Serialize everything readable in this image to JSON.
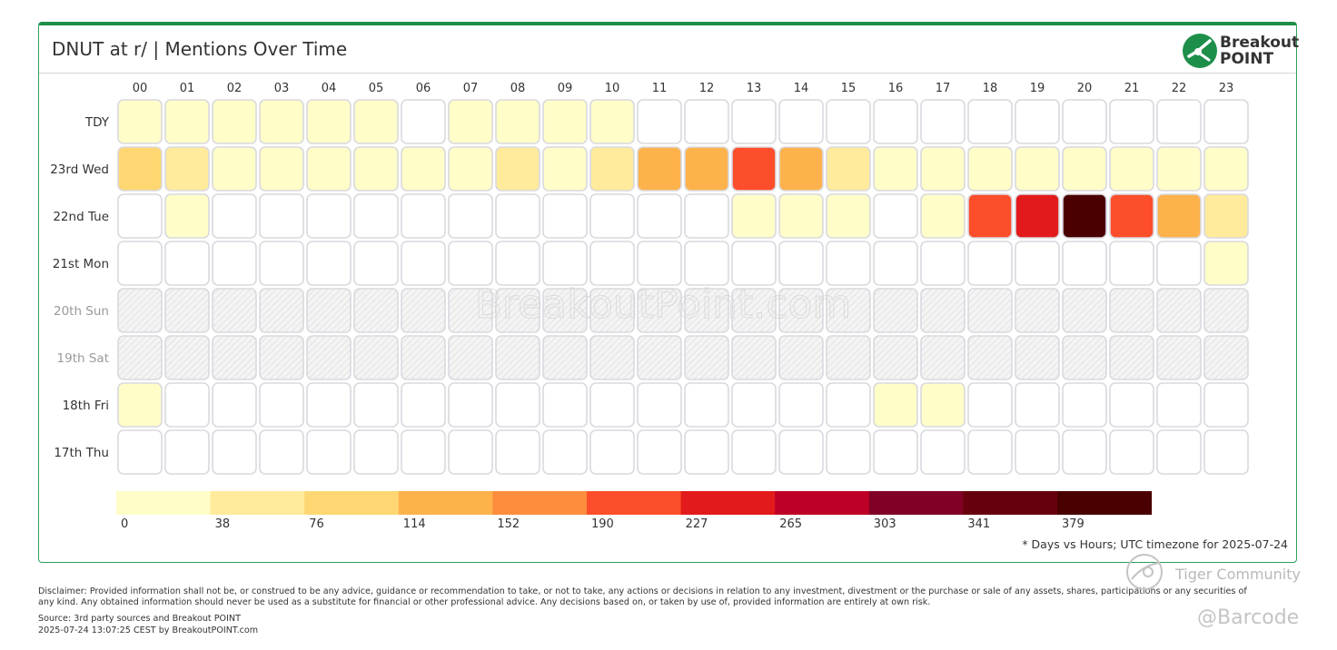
{
  "card": {
    "title": "DNUT at r/ | Mentions Over Time"
  },
  "logo": {
    "line1": "Breakout",
    "line2": "POINT"
  },
  "chart_data": {
    "type": "heatmap",
    "title": "DNUT at r/ | Mentions Over Time",
    "x": [
      "00",
      "01",
      "02",
      "03",
      "04",
      "05",
      "06",
      "07",
      "08",
      "09",
      "10",
      "11",
      "12",
      "13",
      "14",
      "15",
      "16",
      "17",
      "18",
      "19",
      "20",
      "21",
      "22",
      "23"
    ],
    "y": [
      "TDY",
      "23rd Wed",
      "22nd Tue",
      "21st Mon",
      "20th Sun",
      "19th Sat",
      "18th Fri",
      "17th Thu"
    ],
    "weekend_rows": [
      "20th Sun",
      "19th Sat"
    ],
    "values": [
      [
        8,
        8,
        8,
        8,
        8,
        8,
        null,
        8,
        8,
        8,
        8,
        null,
        null,
        null,
        null,
        null,
        null,
        null,
        null,
        null,
        null,
        null,
        null,
        null
      ],
      [
        80,
        55,
        15,
        15,
        15,
        15,
        15,
        15,
        40,
        15,
        40,
        125,
        135,
        200,
        125,
        45,
        15,
        15,
        15,
        15,
        15,
        15,
        15,
        15
      ],
      [
        null,
        10,
        null,
        null,
        null,
        null,
        null,
        null,
        null,
        null,
        null,
        null,
        null,
        10,
        10,
        15,
        null,
        10,
        195,
        235,
        400,
        190,
        125,
        45
      ],
      [
        null,
        null,
        null,
        null,
        null,
        null,
        null,
        null,
        null,
        null,
        null,
        null,
        null,
        null,
        null,
        null,
        null,
        null,
        null,
        null,
        null,
        null,
        null,
        10
      ],
      [
        null,
        null,
        null,
        null,
        null,
        null,
        null,
        null,
        null,
        null,
        null,
        null,
        null,
        null,
        null,
        null,
        null,
        null,
        null,
        null,
        null,
        null,
        null,
        null
      ],
      [
        null,
        null,
        null,
        null,
        null,
        null,
        null,
        null,
        null,
        null,
        null,
        null,
        null,
        null,
        null,
        null,
        null,
        null,
        null,
        null,
        null,
        null,
        null,
        null
      ],
      [
        10,
        null,
        null,
        null,
        null,
        null,
        null,
        null,
        null,
        null,
        null,
        null,
        null,
        null,
        null,
        null,
        10,
        10,
        null,
        null,
        null,
        null,
        null,
        null
      ],
      [
        null,
        null,
        null,
        null,
        null,
        null,
        null,
        null,
        null,
        null,
        null,
        null,
        null,
        null,
        null,
        null,
        null,
        null,
        null,
        null,
        null,
        null,
        null,
        null
      ]
    ],
    "scale": {
      "ticks": [
        "0",
        "38",
        "76",
        "114",
        "152",
        "190",
        "227",
        "265",
        "303",
        "341",
        "379"
      ],
      "thresholds": [
        0,
        38,
        76,
        114,
        152,
        190,
        227,
        265,
        303,
        341,
        379
      ],
      "colors": [
        "#fffdc8",
        "#ffeb9b",
        "#fed772",
        "#feb24c",
        "#fd8d3c",
        "#fc4e2a",
        "#e31a1c",
        "#bd0026",
        "#800026",
        "#67000d",
        "#4a0000"
      ]
    },
    "footnote": "* Days vs Hours; UTC timezone for 2025-07-24",
    "watermark": "BreakoutPoint.com"
  },
  "footer": {
    "disclaimer": "Disclaimer: Provided information shall not be, or construed to be any advice, guidance or recommendation to take, or not to take, any actions or decisions in relation to any investment, divestment or the purchase or sale of any assets, shares, participations or any securities of any kind. Any obtained information should never be used as a substitute for financial or other professional advice. Any decisions based on, or taken by use of, provided information are entirely at own risk.",
    "source": "Source: 3rd party sources and Breakout POINT",
    "generated": "2025-07-24 13:07:25 CEST by BreakoutPOINT.com"
  },
  "watermarks": {
    "tiger": "Tiger Community",
    "barcode": "@Barcode"
  },
  "colors": {
    "brand_green": "#1e8f4a",
    "empty_cell": "#ffffff",
    "cell_border": "#d9d9df",
    "weekend_label": "#9a9a9a"
  }
}
